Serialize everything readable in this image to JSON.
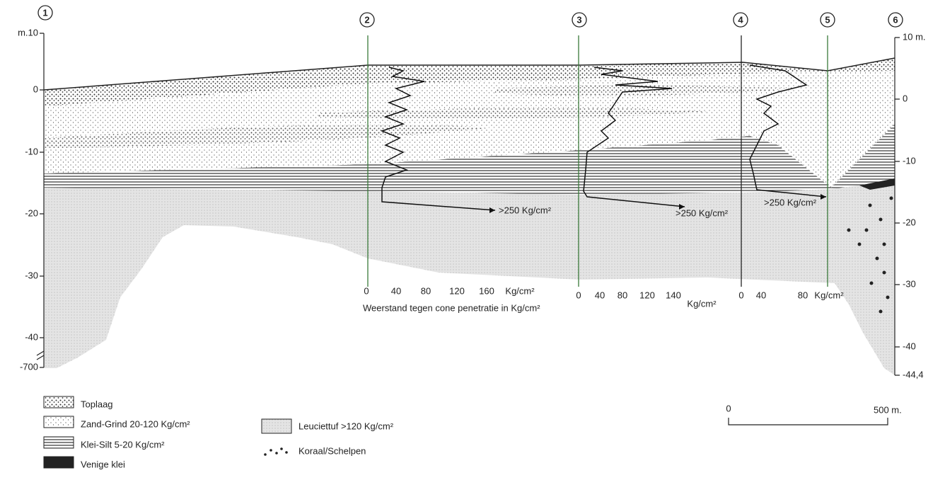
{
  "boreholes": [
    "1",
    "2",
    "3",
    "4",
    "5",
    "6"
  ],
  "left_axis": [
    "m.10",
    "0",
    "-10",
    "-20",
    "-30",
    "-40",
    "-700"
  ],
  "right_axis": [
    "10 m.",
    "0",
    "-10",
    "-20",
    "-30",
    "-40",
    "-44,4"
  ],
  "arrow_labels": [
    ">250 Kg/cm²",
    ">250 Kg/cm²",
    ">250 Kg/cm²"
  ],
  "cpt_scales": [
    {
      "ticks": [
        "0",
        "40",
        "80",
        "120",
        "160"
      ],
      "unit": "Kg/cm²"
    },
    {
      "ticks": [
        "0",
        "40",
        "80",
        "120",
        "140"
      ],
      "unit": "Kg/cm²"
    },
    {
      "ticks": [
        "0",
        "40",
        "80"
      ],
      "unit": "Kg/cm²"
    }
  ],
  "cpt_caption": "Weerstand tegen cone penetratie in Kg/cm²",
  "legend": [
    "Toplaag",
    "Zand-Grind 20-120 Kg/cm²",
    "Klei-Silt 5-20 Kg/cm²",
    "Venige klei",
    "Leuciettuf >120 Kg/cm²",
    "Koraal/Schelpen"
  ],
  "scale_bar": [
    "0",
    "500 m."
  ]
}
